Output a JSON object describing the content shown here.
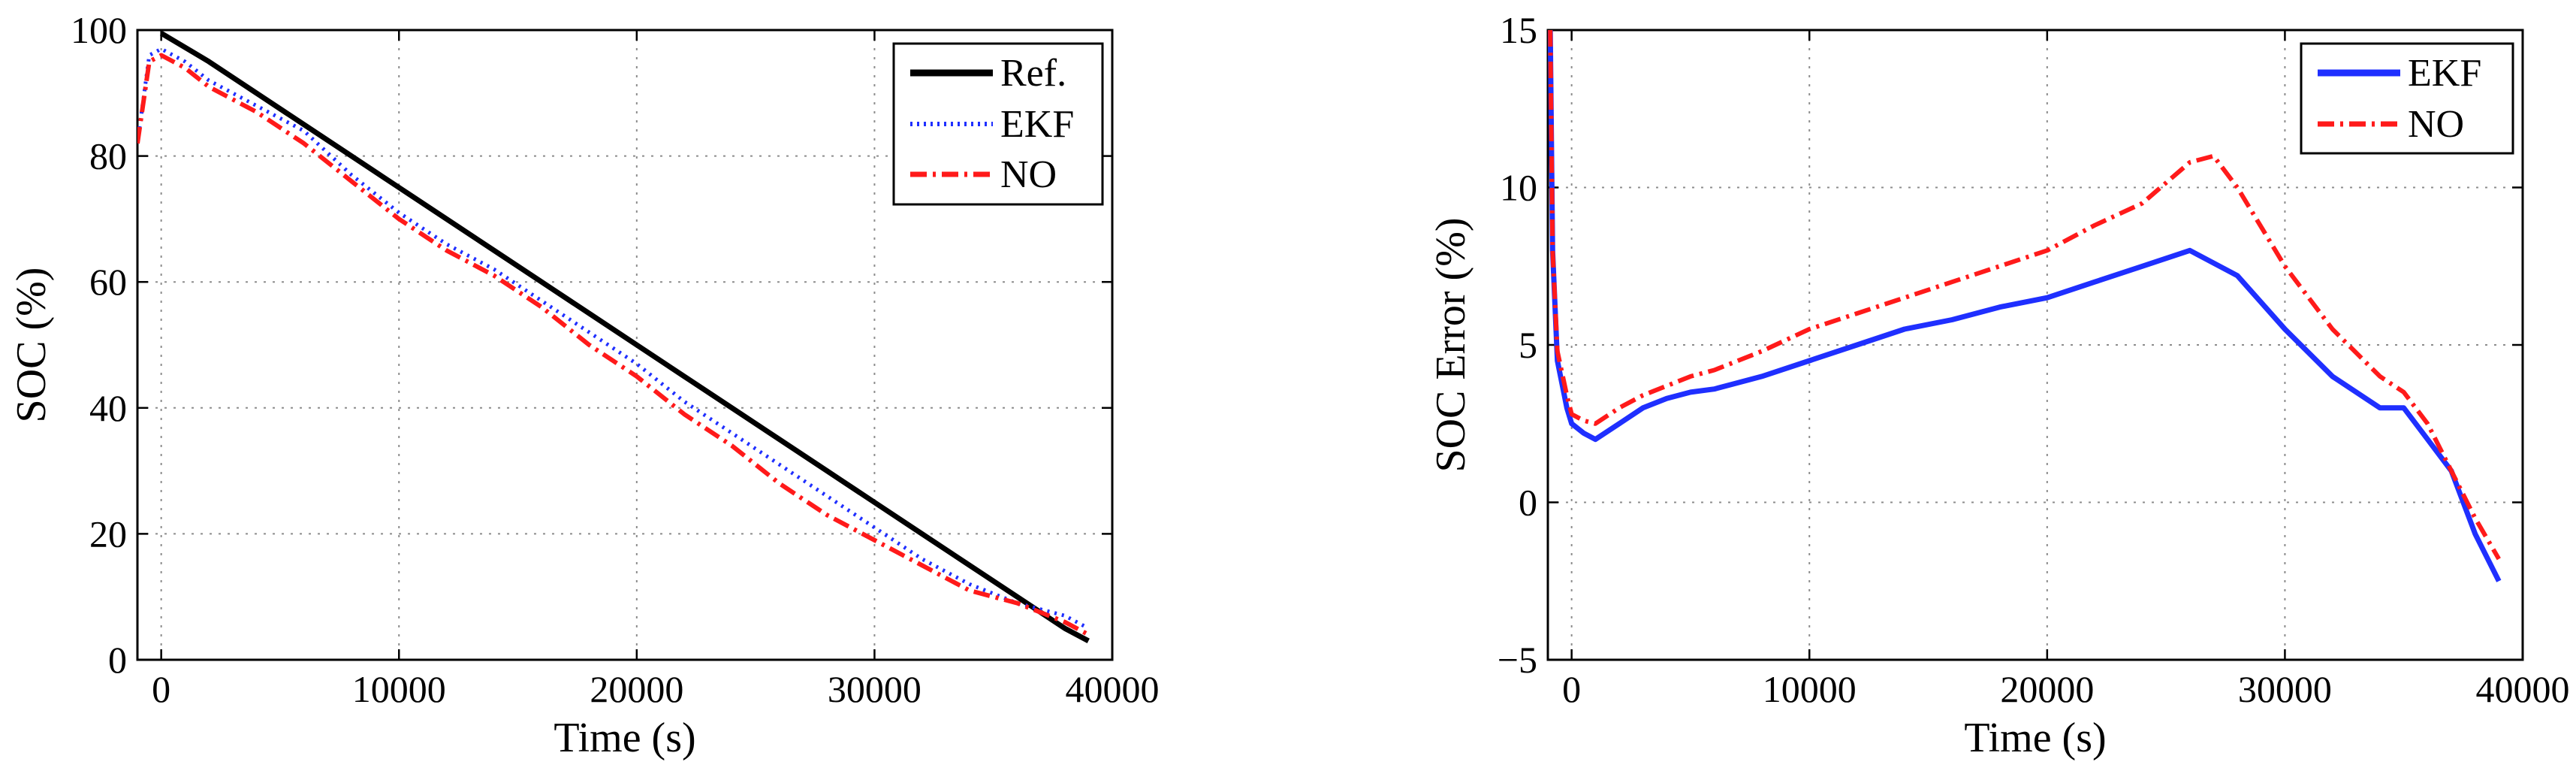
{
  "chart_data": [
    {
      "type": "line",
      "title": "",
      "xlabel": "Time (s)",
      "ylabel": "SOC (%)",
      "xlim": [
        -1000,
        40000
      ],
      "ylim": [
        0,
        100
      ],
      "xticks": [
        0,
        10000,
        20000,
        30000,
        40000
      ],
      "yticks": [
        0,
        20,
        40,
        60,
        80,
        100
      ],
      "grid": true,
      "legend_position": "top-right",
      "series": [
        {
          "name": "Ref.",
          "color": "#000000",
          "style": "solid",
          "x": [
            0,
            2000,
            4000,
            6000,
            8000,
            10000,
            12000,
            14000,
            16000,
            18000,
            20000,
            22000,
            24000,
            26000,
            28000,
            30000,
            32000,
            34000,
            36000,
            38000,
            39000
          ],
          "y": [
            99.5,
            95,
            90,
            85,
            80,
            75,
            70,
            65,
            60,
            55,
            50,
            45,
            40,
            35,
            30,
            25,
            20,
            15,
            10,
            5,
            3
          ]
        },
        {
          "name": "EKF",
          "color": "#1f2fff",
          "style": "dotted",
          "x": [
            -1000,
            -500,
            0,
            500,
            1000,
            2000,
            4000,
            6000,
            8000,
            10000,
            12000,
            14000,
            16000,
            18000,
            20000,
            22000,
            24000,
            26000,
            28000,
            30000,
            32000,
            34000,
            36000,
            38000,
            39000
          ],
          "y": [
            82,
            96,
            97,
            96,
            95,
            92,
            88,
            84,
            77,
            71,
            66,
            62,
            57,
            52,
            47,
            41,
            36,
            31,
            26,
            21,
            16,
            12,
            9,
            7,
            5
          ]
        },
        {
          "name": "NO",
          "color": "#ff1a1a",
          "style": "dashdot",
          "x": [
            -1000,
            -500,
            0,
            500,
            1000,
            2000,
            4000,
            6000,
            8000,
            10000,
            12000,
            14000,
            16000,
            18000,
            20000,
            22000,
            24000,
            26000,
            28000,
            30000,
            32000,
            34000,
            36000,
            38000,
            39000
          ],
          "y": [
            82,
            95,
            96,
            95,
            94,
            91,
            87,
            82,
            76,
            70,
            65,
            61,
            56,
            50,
            45,
            39,
            34,
            28,
            23,
            19,
            15,
            11,
            9,
            6,
            4
          ]
        }
      ]
    },
    {
      "type": "line",
      "title": "",
      "xlabel": "Time (s)",
      "ylabel": "SOC Error (%)",
      "xlim": [
        -1000,
        40000
      ],
      "ylim": [
        -5,
        15
      ],
      "xticks": [
        0,
        10000,
        20000,
        30000,
        40000
      ],
      "yticks": [
        -5,
        0,
        5,
        10,
        15
      ],
      "grid": true,
      "legend_position": "top-right",
      "series": [
        {
          "name": "EKF",
          "color": "#1f2fff",
          "style": "solid",
          "x": [
            -900,
            -800,
            -600,
            -200,
            0,
            500,
            1000,
            2000,
            3000,
            4000,
            5000,
            6000,
            8000,
            10000,
            12000,
            14000,
            16000,
            18000,
            20000,
            22000,
            24000,
            26000,
            28000,
            30000,
            32000,
            34000,
            35000,
            36000,
            37000,
            38000,
            39000
          ],
          "y": [
            15,
            8,
            4.5,
            3,
            2.5,
            2.2,
            2.0,
            2.5,
            3.0,
            3.3,
            3.5,
            3.6,
            4.0,
            4.5,
            5.0,
            5.5,
            5.8,
            6.2,
            6.5,
            7.0,
            7.5,
            8.0,
            7.2,
            5.5,
            4.0,
            3.0,
            3.0,
            2.0,
            1.0,
            -1.0,
            -2.5
          ]
        },
        {
          "name": "NO",
          "color": "#ff1a1a",
          "style": "dashdot",
          "x": [
            -900,
            -800,
            -600,
            -200,
            0,
            500,
            1000,
            2000,
            3000,
            4000,
            5000,
            6000,
            8000,
            10000,
            12000,
            14000,
            16000,
            18000,
            20000,
            22000,
            24000,
            26000,
            27000,
            28000,
            30000,
            32000,
            34000,
            35000,
            36000,
            37000,
            38000,
            39000
          ],
          "y": [
            15,
            8,
            4.8,
            3.4,
            2.8,
            2.6,
            2.5,
            3.0,
            3.4,
            3.7,
            4.0,
            4.2,
            4.8,
            5.5,
            6.0,
            6.5,
            7.0,
            7.5,
            8.0,
            8.8,
            9.5,
            10.8,
            11.0,
            10.0,
            7.5,
            5.5,
            4.0,
            3.5,
            2.5,
            1.0,
            -0.5,
            -1.8
          ]
        }
      ]
    }
  ]
}
